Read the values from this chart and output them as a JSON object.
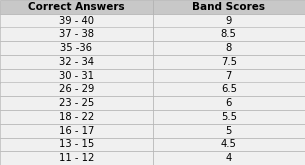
{
  "correct_answers": [
    "39 - 40",
    "37 - 38",
    "35 -36",
    "32 - 34",
    "30 - 31",
    "26 - 29",
    "23 - 25",
    "18 - 22",
    "16 - 17",
    "13 - 15",
    "11 - 12"
  ],
  "band_scores": [
    "9",
    "8.5",
    "8",
    "7.5",
    "7",
    "6.5",
    "6",
    "5.5",
    "5",
    "4.5",
    "4"
  ],
  "col1_header": "Correct Answers",
  "col2_header": "Band Scores",
  "header_bg": "#c8c8c8",
  "row_bg": "#f0f0f0",
  "border_color": "#aaaaaa",
  "text_color": "#000000",
  "header_fontsize": 7.5,
  "cell_fontsize": 7.2,
  "fig_width": 3.05,
  "fig_height": 1.65,
  "dpi": 100
}
